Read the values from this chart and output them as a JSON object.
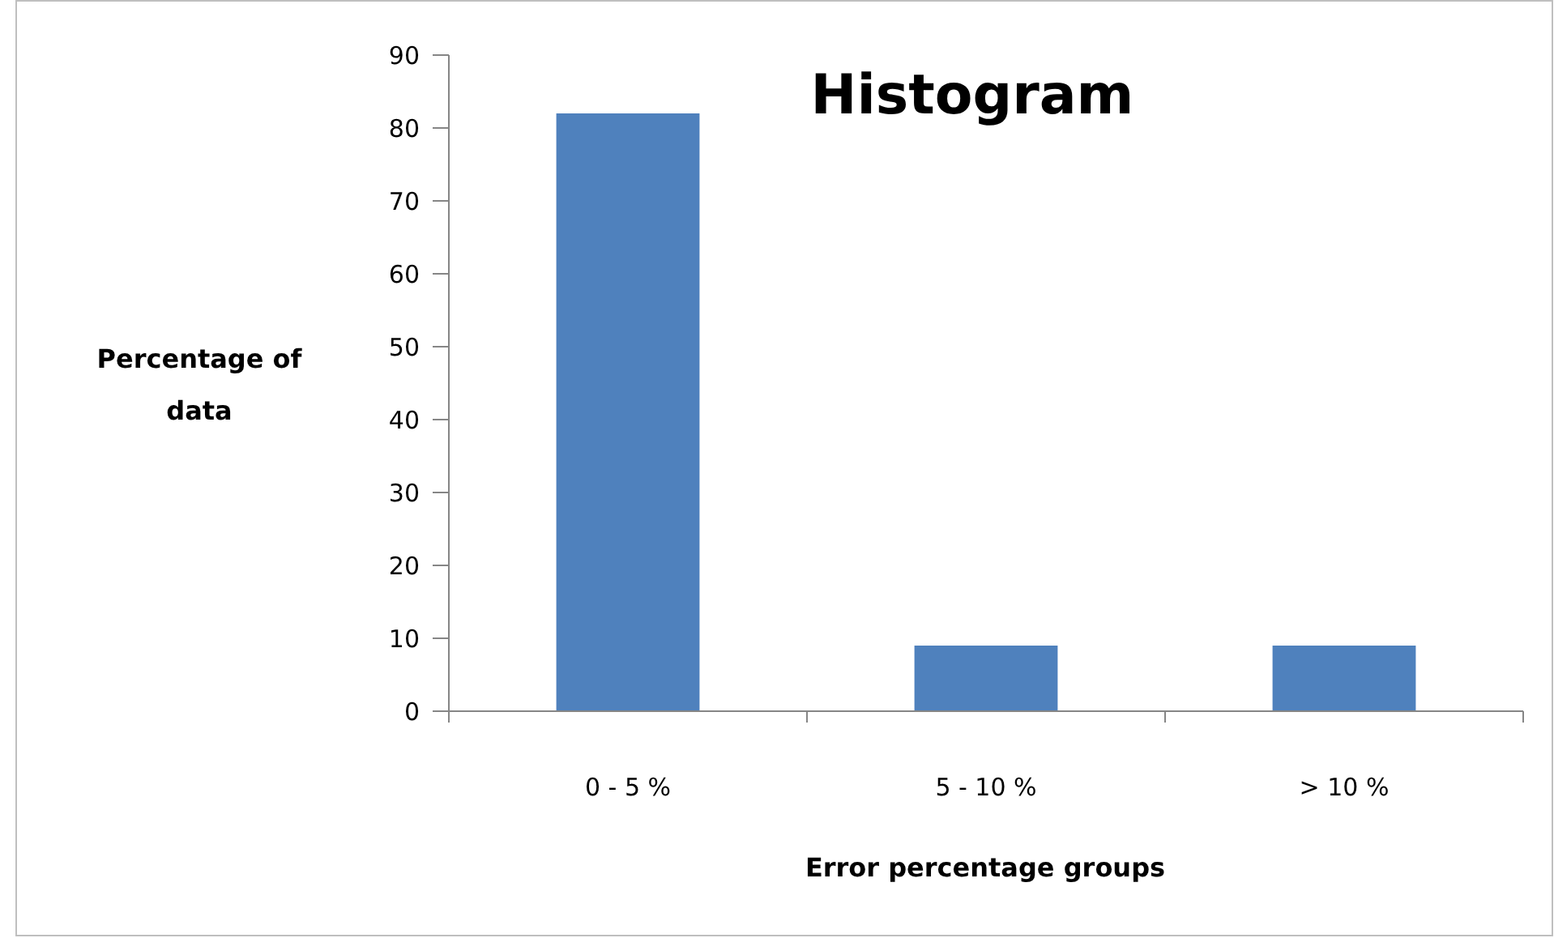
{
  "chart_data": {
    "type": "bar",
    "title": "Histogram",
    "xlabel": "Error percentage groups",
    "ylabel": "Percentage of data",
    "categories": [
      "0 - 5 %",
      "5 - 10 %",
      "> 10 %"
    ],
    "values": [
      82,
      9,
      9
    ],
    "color": "#4f81bd",
    "ylim": [
      0,
      90
    ],
    "yticks": [
      0,
      10,
      20,
      30,
      40,
      50,
      60,
      70,
      80,
      90
    ],
    "grid": false
  }
}
